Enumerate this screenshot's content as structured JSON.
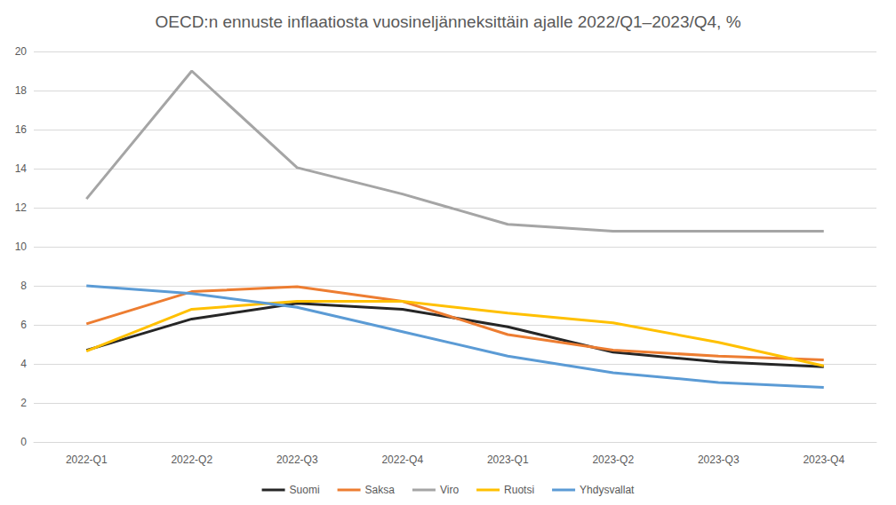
{
  "chart_data": {
    "type": "line",
    "title": "OECD:n ennuste inflaatiosta vuosineljänneksittäin ajalle 2022/Q1–2023/Q4, %",
    "categories": [
      "2022-Q1",
      "2022-Q2",
      "2022-Q3",
      "2022-Q4",
      "2023-Q1",
      "2023-Q2",
      "2023-Q3",
      "2023-Q4"
    ],
    "series": [
      {
        "name": "Suomi",
        "color": "#262626",
        "values": [
          4.7,
          6.3,
          7.1,
          6.8,
          5.9,
          4.6,
          4.1,
          3.85
        ]
      },
      {
        "name": "Saksa",
        "color": "#ED7D31",
        "values": [
          6.05,
          7.7,
          7.95,
          7.2,
          5.5,
          4.7,
          4.4,
          4.2
        ]
      },
      {
        "name": "Viro",
        "color": "#A5A5A5",
        "values": [
          12.45,
          19.0,
          14.05,
          12.7,
          11.15,
          10.8,
          10.8,
          10.8
        ]
      },
      {
        "name": "Ruotsi",
        "color": "#FFC000",
        "values": [
          4.65,
          6.8,
          7.2,
          7.2,
          6.6,
          6.1,
          5.1,
          3.9
        ]
      },
      {
        "name": "Yhdysvallat",
        "color": "#5B9BD5",
        "values": [
          8.0,
          7.6,
          6.9,
          5.65,
          4.4,
          3.55,
          3.05,
          2.8
        ]
      }
    ],
    "ylim": [
      0,
      20
    ],
    "yticks": [
      0,
      2,
      4,
      6,
      8,
      10,
      12,
      14,
      16,
      18,
      20
    ],
    "grid": true,
    "legend": "bottom"
  }
}
